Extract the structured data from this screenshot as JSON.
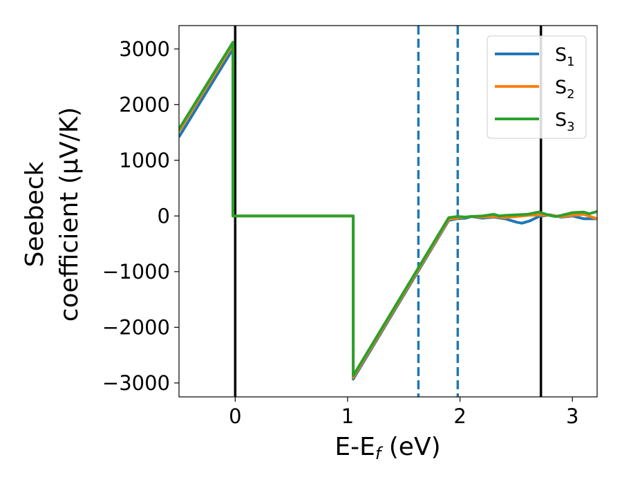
{
  "chart_data": {
    "type": "line",
    "title": "",
    "xlabel": "E-E",
    "xlabel_sub": "f",
    "xlabel_unit": " (eV)",
    "ylabel_line1": "Seebeck",
    "ylabel_line2": "coefficient  (μV/K)",
    "xlim": [
      -0.5,
      3.22
    ],
    "ylim": [
      -3250,
      3420
    ],
    "xticks": [
      0,
      1,
      2,
      3
    ],
    "xtick_labels": [
      "0",
      "1",
      "2",
      "3"
    ],
    "yticks": [
      3000,
      2000,
      1000,
      0,
      -1000,
      -2000,
      -3000
    ],
    "ytick_labels": [
      "3000",
      "2000",
      "1000",
      "0",
      "−1000",
      "−2000",
      "−3000"
    ],
    "grid": false,
    "legend_position": "top-right",
    "vlines_solid": [
      0,
      2.72
    ],
    "vlines_dashed": [
      1.63,
      1.98
    ],
    "vline_solid_color": "#000000",
    "vline_dashed_color": "#1f77b4",
    "series": [
      {
        "name": "S",
        "name_sub": "1",
        "color": "#1f77b4",
        "points": [
          [
            -0.5,
            1420
          ],
          [
            -0.02,
            3000
          ],
          [
            -0.02,
            0
          ],
          [
            1.05,
            0
          ],
          [
            1.05,
            -2930
          ],
          [
            1.9,
            -80
          ],
          [
            1.97,
            -50
          ],
          [
            2.05,
            -40
          ],
          [
            2.1,
            -10
          ],
          [
            2.2,
            -40
          ],
          [
            2.3,
            -20
          ],
          [
            2.4,
            -50
          ],
          [
            2.5,
            -110
          ],
          [
            2.55,
            -130
          ],
          [
            2.62,
            -90
          ],
          [
            2.7,
            -10
          ],
          [
            2.8,
            20
          ],
          [
            2.9,
            -20
          ],
          [
            3.0,
            0
          ],
          [
            3.1,
            -50
          ],
          [
            3.22,
            -50
          ]
        ]
      },
      {
        "name": "S",
        "name_sub": "2",
        "color": "#ff7f0e",
        "points": [
          [
            -0.5,
            1520
          ],
          [
            -0.02,
            3080
          ],
          [
            -0.02,
            0
          ],
          [
            1.05,
            0
          ],
          [
            1.05,
            -2900
          ],
          [
            1.9,
            -60
          ],
          [
            2.0,
            -30
          ],
          [
            2.1,
            -10
          ],
          [
            2.2,
            -20
          ],
          [
            2.3,
            -10
          ],
          [
            2.4,
            -30
          ],
          [
            2.5,
            -10
          ],
          [
            2.6,
            10
          ],
          [
            2.7,
            20
          ],
          [
            2.8,
            10
          ],
          [
            2.9,
            -10
          ],
          [
            3.0,
            10
          ],
          [
            3.1,
            30
          ],
          [
            3.22,
            -50
          ]
        ]
      },
      {
        "name": "S",
        "name_sub": "3",
        "color": "#2ca02c",
        "points": [
          [
            -0.5,
            1560
          ],
          [
            -0.02,
            3120
          ],
          [
            -0.02,
            0
          ],
          [
            1.05,
            0
          ],
          [
            1.05,
            -2870
          ],
          [
            1.9,
            -30
          ],
          [
            1.98,
            -10
          ],
          [
            2.05,
            -20
          ],
          [
            2.1,
            -10
          ],
          [
            2.2,
            0
          ],
          [
            2.3,
            30
          ],
          [
            2.35,
            0
          ],
          [
            2.4,
            10
          ],
          [
            2.5,
            20
          ],
          [
            2.6,
            30
          ],
          [
            2.7,
            70
          ],
          [
            2.8,
            10
          ],
          [
            2.85,
            -10
          ],
          [
            2.9,
            10
          ],
          [
            3.0,
            60
          ],
          [
            3.1,
            70
          ],
          [
            3.15,
            40
          ],
          [
            3.22,
            80
          ]
        ]
      }
    ]
  }
}
